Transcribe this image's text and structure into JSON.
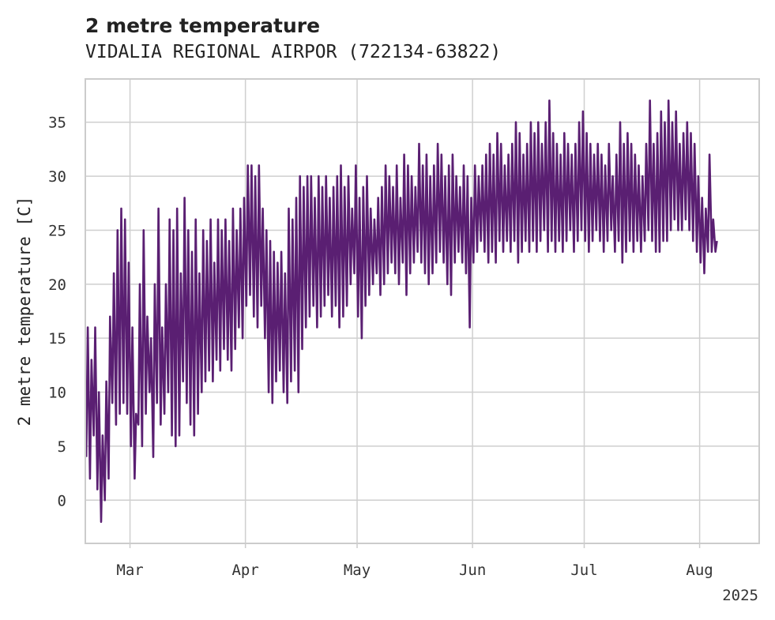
{
  "chart_data": {
    "type": "line",
    "title": "2 metre temperature",
    "subtitle": "VIDALIA REGIONAL AIRPOR (722134-63822)",
    "xlabel": "",
    "ylabel": "2 metre temperature [C]",
    "x_range": [
      "2025-02-17",
      "2025-08-17"
    ],
    "ylim": [
      -4,
      39
    ],
    "y_ticks": [
      0,
      5,
      10,
      15,
      20,
      25,
      30,
      35
    ],
    "x_ticks": [
      {
        "date": "2025-03-01",
        "label": "Mar"
      },
      {
        "date": "2025-04-01",
        "label": "Apr"
      },
      {
        "date": "2025-05-01",
        "label": "May"
      },
      {
        "date": "2025-06-01",
        "label": "Jun"
      },
      {
        "date": "2025-07-01",
        "label": "Jul"
      },
      {
        "date": "2025-08-01",
        "label": "Aug"
      }
    ],
    "year_label": "2025",
    "grid": true,
    "color": "#5a1f72",
    "series": [
      {
        "x": [
          "2025-02-17",
          "2025-02-18",
          "2025-02-19",
          "2025-02-20",
          "2025-02-21",
          "2025-02-22",
          "2025-02-23",
          "2025-02-24",
          "2025-02-25",
          "2025-02-26",
          "2025-02-27",
          "2025-02-28",
          "2025-03-01",
          "2025-03-02",
          "2025-03-03",
          "2025-03-04",
          "2025-03-05",
          "2025-03-06",
          "2025-03-07",
          "2025-03-08",
          "2025-03-09",
          "2025-03-10",
          "2025-03-11",
          "2025-03-12",
          "2025-03-13",
          "2025-03-14",
          "2025-03-15",
          "2025-03-16",
          "2025-03-17",
          "2025-03-18",
          "2025-03-19",
          "2025-03-20",
          "2025-03-21",
          "2025-03-22",
          "2025-03-23",
          "2025-03-24",
          "2025-03-25",
          "2025-03-26",
          "2025-03-27",
          "2025-03-28",
          "2025-03-29",
          "2025-03-30",
          "2025-03-31",
          "2025-04-01",
          "2025-04-02",
          "2025-04-03",
          "2025-04-04",
          "2025-04-05",
          "2025-04-06",
          "2025-04-07",
          "2025-04-08",
          "2025-04-09",
          "2025-04-10",
          "2025-04-11",
          "2025-04-12",
          "2025-04-13",
          "2025-04-14",
          "2025-04-15",
          "2025-04-16",
          "2025-04-17",
          "2025-04-18",
          "2025-04-19",
          "2025-04-20",
          "2025-04-21",
          "2025-04-22",
          "2025-04-23",
          "2025-04-24",
          "2025-04-25",
          "2025-04-26",
          "2025-04-27",
          "2025-04-28",
          "2025-04-29",
          "2025-04-30",
          "2025-05-01",
          "2025-05-02",
          "2025-05-03",
          "2025-05-04",
          "2025-05-05",
          "2025-05-06",
          "2025-05-07",
          "2025-05-08",
          "2025-05-09",
          "2025-05-10",
          "2025-05-11",
          "2025-05-12",
          "2025-05-13",
          "2025-05-14",
          "2025-05-15",
          "2025-05-16",
          "2025-05-17",
          "2025-05-18",
          "2025-05-19",
          "2025-05-20",
          "2025-05-21",
          "2025-05-22",
          "2025-05-23",
          "2025-05-24",
          "2025-05-25",
          "2025-05-26",
          "2025-05-27",
          "2025-05-28",
          "2025-05-29",
          "2025-05-30",
          "2025-05-31",
          "2025-06-01",
          "2025-06-02",
          "2025-06-03",
          "2025-06-04",
          "2025-06-05",
          "2025-06-06",
          "2025-06-07",
          "2025-06-08",
          "2025-06-09",
          "2025-06-10",
          "2025-06-11",
          "2025-06-12",
          "2025-06-13",
          "2025-06-14",
          "2025-06-15",
          "2025-06-16",
          "2025-06-17",
          "2025-06-18",
          "2025-06-19",
          "2025-06-20",
          "2025-06-21",
          "2025-06-22",
          "2025-06-23",
          "2025-06-24",
          "2025-06-25",
          "2025-06-26",
          "2025-06-27",
          "2025-06-28",
          "2025-06-29",
          "2025-06-30",
          "2025-07-01",
          "2025-07-02",
          "2025-07-03",
          "2025-07-04",
          "2025-07-05",
          "2025-07-06",
          "2025-07-07",
          "2025-07-08",
          "2025-07-09",
          "2025-07-10",
          "2025-07-11",
          "2025-07-12",
          "2025-07-13",
          "2025-07-14",
          "2025-07-15",
          "2025-07-16",
          "2025-07-17",
          "2025-07-18",
          "2025-07-19",
          "2025-07-20",
          "2025-07-21",
          "2025-07-22",
          "2025-07-23",
          "2025-07-24",
          "2025-07-25",
          "2025-07-26",
          "2025-07-27",
          "2025-07-28",
          "2025-07-29",
          "2025-07-30",
          "2025-07-31",
          "2025-08-01",
          "2025-08-02",
          "2025-08-03",
          "2025-08-04",
          "2025-08-05"
        ],
        "min": [
          4,
          2,
          6,
          1,
          -2,
          0,
          2,
          9,
          7,
          8,
          9,
          8,
          5,
          2,
          7,
          5,
          8,
          10,
          4,
          9,
          7,
          8,
          10,
          6,
          5,
          6,
          11,
          9,
          7,
          6,
          8,
          10,
          11,
          12,
          11,
          13,
          12,
          14,
          13,
          12,
          14,
          16,
          15,
          18,
          19,
          17,
          16,
          18,
          15,
          10,
          9,
          11,
          12,
          10,
          9,
          11,
          12,
          10,
          14,
          16,
          17,
          18,
          16,
          17,
          18,
          19,
          17,
          18,
          16,
          17,
          18,
          20,
          21,
          17,
          15,
          18,
          19,
          20,
          21,
          19,
          20,
          21,
          22,
          21,
          20,
          22,
          19,
          21,
          22,
          23,
          22,
          21,
          20,
          21,
          22,
          23,
          22,
          20,
          19,
          22,
          23,
          22,
          21,
          16,
          22,
          23,
          24,
          23,
          22,
          23,
          22,
          24,
          23,
          24,
          23,
          24,
          22,
          23,
          24,
          23,
          24,
          23,
          24,
          25,
          23,
          24,
          23,
          24,
          23,
          24,
          25,
          23,
          24,
          25,
          24,
          23,
          24,
          25,
          24,
          23,
          24,
          25,
          23,
          24,
          22,
          23,
          24,
          23,
          24,
          23,
          24,
          25,
          24,
          23,
          23,
          24,
          24,
          25,
          26,
          25,
          25,
          26,
          25,
          24,
          23,
          22,
          21,
          23,
          23,
          23
        ],
        "max": [
          16,
          13,
          16,
          10,
          6,
          11,
          17,
          21,
          25,
          27,
          26,
          22,
          16,
          8,
          20,
          25,
          17,
          15,
          20,
          27,
          16,
          20,
          26,
          25,
          27,
          21,
          28,
          25,
          23,
          26,
          21,
          25,
          24,
          26,
          22,
          26,
          25,
          26,
          24,
          27,
          25,
          27,
          28,
          31,
          31,
          30,
          31,
          27,
          25,
          24,
          23,
          22,
          23,
          21,
          27,
          26,
          28,
          30,
          29,
          30,
          30,
          28,
          30,
          29,
          30,
          28,
          29,
          30,
          31,
          29,
          30,
          27,
          31,
          28,
          29,
          30,
          27,
          26,
          28,
          29,
          31,
          30,
          29,
          31,
          28,
          32,
          31,
          30,
          29,
          33,
          31,
          32,
          30,
          31,
          33,
          32,
          30,
          31,
          32,
          30,
          29,
          31,
          30,
          28,
          31,
          30,
          31,
          32,
          33,
          32,
          34,
          33,
          31,
          32,
          33,
          35,
          34,
          32,
          33,
          35,
          34,
          35,
          33,
          35,
          37,
          34,
          33,
          32,
          34,
          33,
          32,
          33,
          35,
          36,
          34,
          33,
          32,
          33,
          32,
          31,
          33,
          30,
          32,
          35,
          33,
          34,
          33,
          32,
          31,
          30,
          33,
          37,
          33,
          34,
          36,
          35,
          37,
          35,
          36,
          33,
          34,
          35,
          34,
          33,
          30,
          28,
          27,
          32,
          26,
          24
        ]
      }
    ]
  }
}
